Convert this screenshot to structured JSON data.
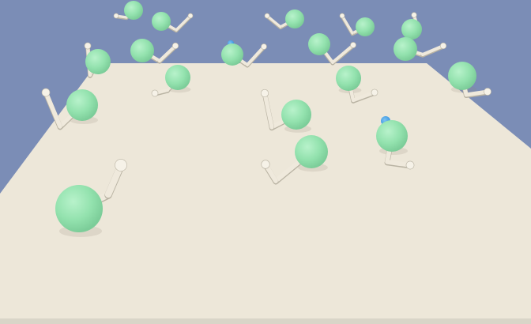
{
  "scene": {
    "kind": "3d-reacher-arena",
    "agent_count": 20,
    "colors": {
      "sky": "#7b8db6",
      "floor": "#ede7d9",
      "floor_shade": "#e6dfcf",
      "ball": "#92e2ad",
      "ball_shadow": "#7fcf9c",
      "ball_highlight": "#b4f0c6",
      "arm": "#efe9dc",
      "arm_shadow": "#b9b3a3",
      "target": "#4aa3ea",
      "bottom_strip": "#d9d5c8"
    }
  }
}
